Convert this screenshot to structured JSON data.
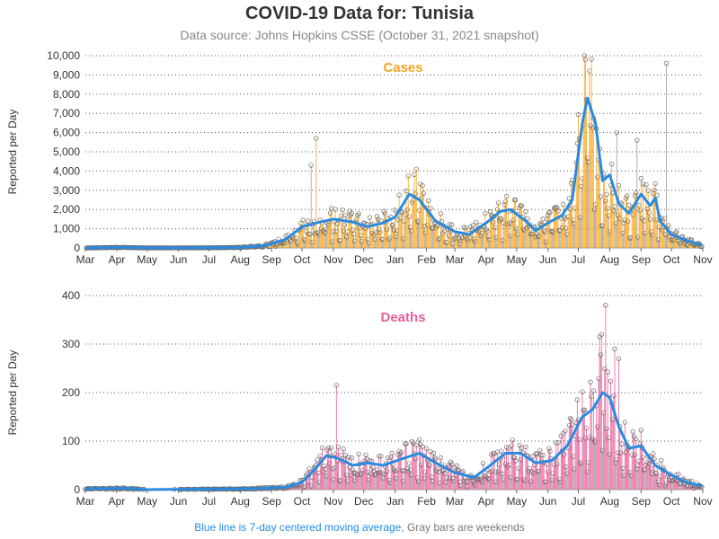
{
  "header": {
    "title": "COVID-19 Data for: Tunisia",
    "subtitle": "Data source: Johns Hopkins CSSE (October 31, 2021 snapshot)"
  },
  "footer": {
    "legend_line": "Blue line is 7-day centered moving average,",
    "legend_bars": "Gray bars are weekends"
  },
  "colors": {
    "cases": "#f5a623",
    "deaths": "#e8609b",
    "average": "#2a8ae0",
    "weekend": "#888888",
    "grid": "#555555"
  },
  "chart_data": [
    {
      "type": "bar",
      "title": "Cases",
      "ylabel": "Reported per Day",
      "ylim": [
        0,
        10000
      ],
      "yticks": [
        "0",
        "1,000",
        "2,000",
        "3,000",
        "4,000",
        "5,000",
        "6,000",
        "7,000",
        "8,000",
        "9,000",
        "10,000"
      ],
      "xtick_labels": [
        "Mar",
        "Apr",
        "May",
        "Jun",
        "Jul",
        "Aug",
        "Sep",
        "Oct",
        "Nov",
        "Dec",
        "Jan",
        "Feb",
        "Mar",
        "Apr",
        "May",
        "Jun",
        "Jul",
        "Aug",
        "Sep",
        "Oct",
        "Nov"
      ],
      "x_range": [
        "2020-03-01",
        "2021-11-01"
      ],
      "grid": "horizontal dotted",
      "moving_average_7day": [
        [
          "2020-03-01",
          0
        ],
        [
          "2020-03-20",
          20
        ],
        [
          "2020-04-10",
          30
        ],
        [
          "2020-05-01",
          5
        ],
        [
          "2020-06-01",
          5
        ],
        [
          "2020-07-01",
          10
        ],
        [
          "2020-08-01",
          30
        ],
        [
          "2020-08-25",
          120
        ],
        [
          "2020-09-15",
          450
        ],
        [
          "2020-10-01",
          1100
        ],
        [
          "2020-10-15",
          1300
        ],
        [
          "2020-11-01",
          1500
        ],
        [
          "2020-11-20",
          1350
        ],
        [
          "2020-12-05",
          1100
        ],
        [
          "2020-12-20",
          1300
        ],
        [
          "2021-01-01",
          1600
        ],
        [
          "2021-01-15",
          2800
        ],
        [
          "2021-01-25",
          2500
        ],
        [
          "2021-02-10",
          1400
        ],
        [
          "2021-03-01",
          850
        ],
        [
          "2021-03-15",
          700
        ],
        [
          "2021-04-01",
          1300
        ],
        [
          "2021-04-15",
          1900
        ],
        [
          "2021-04-25",
          2000
        ],
        [
          "2021-05-10",
          1400
        ],
        [
          "2021-05-20",
          900
        ],
        [
          "2021-06-01",
          1300
        ],
        [
          "2021-06-15",
          1700
        ],
        [
          "2021-06-25",
          2500
        ],
        [
          "2021-07-05",
          6500
        ],
        [
          "2021-07-10",
          7800
        ],
        [
          "2021-07-18",
          6500
        ],
        [
          "2021-07-25",
          3500
        ],
        [
          "2021-08-01",
          3800
        ],
        [
          "2021-08-10",
          2300
        ],
        [
          "2021-08-20",
          1800
        ],
        [
          "2021-09-01",
          2800
        ],
        [
          "2021-09-10",
          2200
        ],
        [
          "2021-09-15",
          2600
        ],
        [
          "2021-09-20",
          1400
        ],
        [
          "2021-10-01",
          700
        ],
        [
          "2021-10-15",
          400
        ],
        [
          "2021-10-31",
          150
        ]
      ],
      "notable_spikes": [
        [
          "2020-10-15",
          5700
        ],
        [
          "2020-10-10",
          4300
        ],
        [
          "2021-01-22",
          4100
        ],
        [
          "2021-07-08",
          9800
        ],
        [
          "2021-07-12",
          9200
        ],
        [
          "2021-08-08",
          6000
        ],
        [
          "2021-08-28",
          5600
        ],
        [
          "2021-09-26",
          9600
        ]
      ]
    },
    {
      "type": "bar",
      "title": "Deaths",
      "ylabel": "Reported per Day",
      "ylim": [
        0,
        400
      ],
      "yticks": [
        "0",
        "100",
        "200",
        "300",
        "400"
      ],
      "xtick_labels": [
        "Mar",
        "Apr",
        "May",
        "Jun",
        "Jul",
        "Aug",
        "Sep",
        "Oct",
        "Nov",
        "Dec",
        "Jan",
        "Feb",
        "Mar",
        "Apr",
        "May",
        "Jun",
        "Jul",
        "Aug",
        "Sep",
        "Oct",
        "Nov"
      ],
      "x_range": [
        "2020-03-01",
        "2021-11-01"
      ],
      "grid": "horizontal dotted",
      "moving_average_7day": [
        [
          "2020-03-20",
          2
        ],
        [
          "2020-04-10",
          3
        ],
        [
          "2020-05-01",
          0
        ],
        [
          "2020-08-15",
          2
        ],
        [
          "2020-09-15",
          5
        ],
        [
          "2020-10-01",
          15
        ],
        [
          "2020-10-15",
          45
        ],
        [
          "2020-10-25",
          70
        ],
        [
          "2020-11-05",
          65
        ],
        [
          "2020-11-20",
          50
        ],
        [
          "2020-12-05",
          55
        ],
        [
          "2020-12-20",
          50
        ],
        [
          "2021-01-10",
          65
        ],
        [
          "2021-01-25",
          75
        ],
        [
          "2021-02-10",
          55
        ],
        [
          "2021-03-01",
          35
        ],
        [
          "2021-03-20",
          25
        ],
        [
          "2021-04-05",
          50
        ],
        [
          "2021-04-20",
          75
        ],
        [
          "2021-05-05",
          75
        ],
        [
          "2021-05-20",
          55
        ],
        [
          "2021-06-05",
          60
        ],
        [
          "2021-06-20",
          90
        ],
        [
          "2021-07-05",
          150
        ],
        [
          "2021-07-15",
          165
        ],
        [
          "2021-07-25",
          200
        ],
        [
          "2021-08-01",
          190
        ],
        [
          "2021-08-10",
          130
        ],
        [
          "2021-08-20",
          85
        ],
        [
          "2021-09-01",
          90
        ],
        [
          "2021-09-15",
          50
        ],
        [
          "2021-10-01",
          30
        ],
        [
          "2021-10-15",
          15
        ],
        [
          "2021-10-31",
          8
        ]
      ],
      "notable_spikes": [
        [
          "2020-11-04",
          215
        ],
        [
          "2021-07-28",
          380
        ],
        [
          "2021-07-24",
          320
        ],
        [
          "2021-08-06",
          290
        ],
        [
          "2021-08-10",
          270
        ],
        [
          "2021-07-22",
          315
        ]
      ]
    }
  ]
}
